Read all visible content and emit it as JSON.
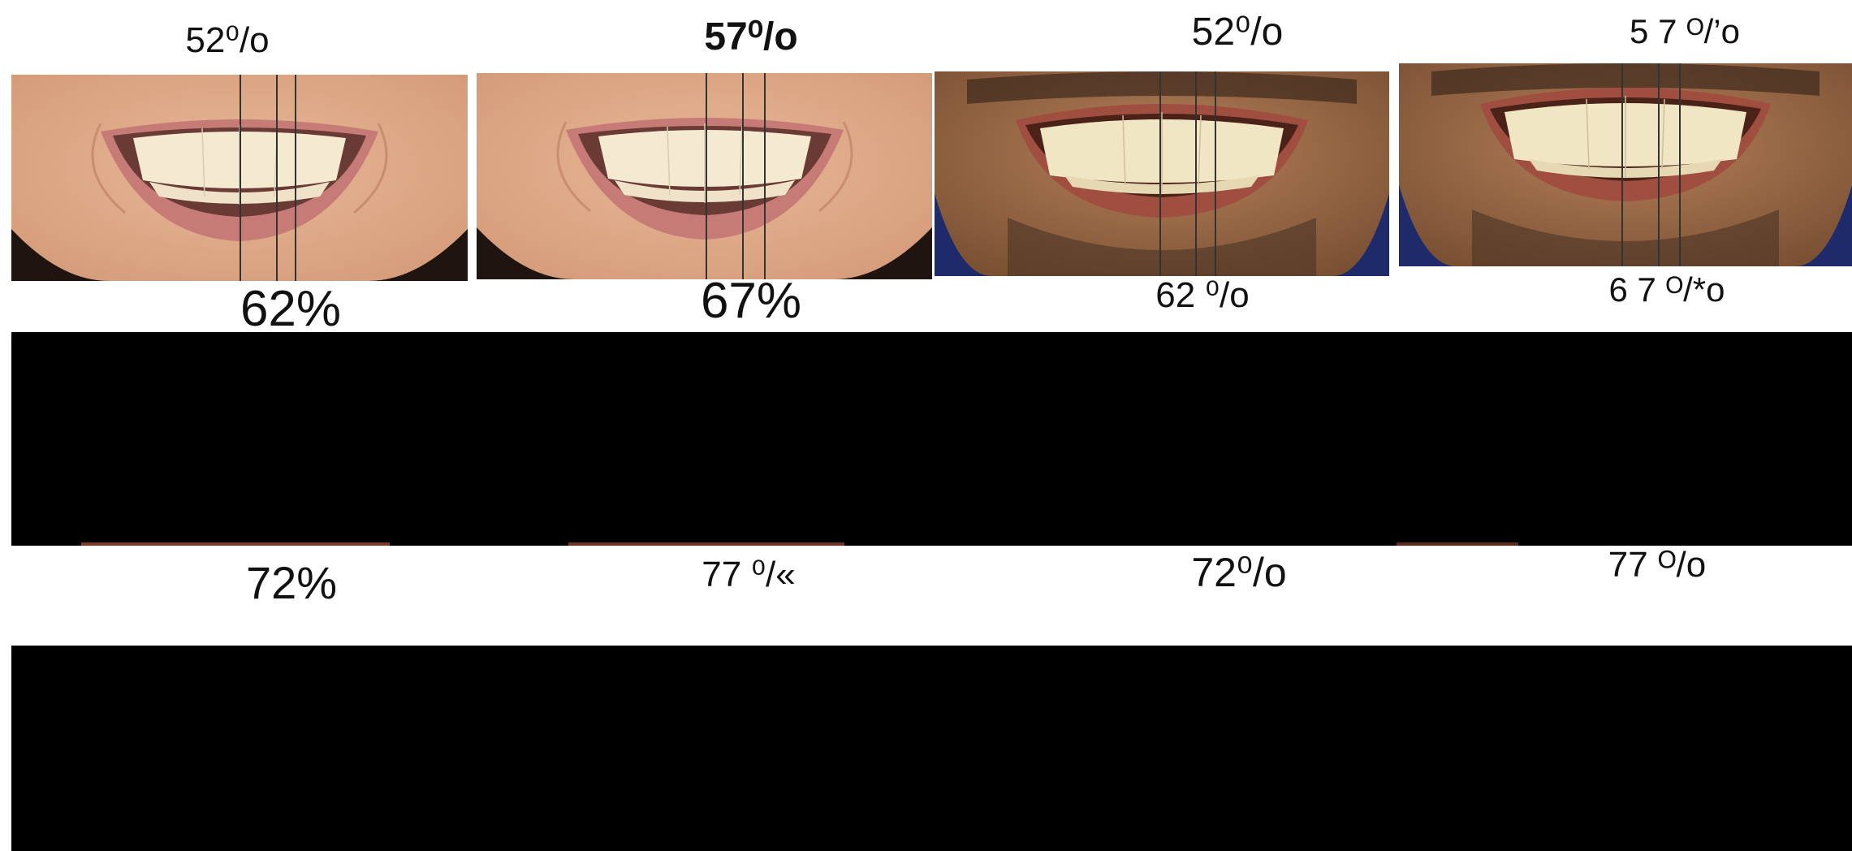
{
  "labels": {
    "row1": [
      "52⁰/o",
      "57⁰/o",
      "52⁰/o",
      "5 7 ᴼ/’o"
    ],
    "row2": [
      "62%",
      "67%",
      "62 ⁰/o",
      "6 7 ᴼ/*o"
    ],
    "row3": [
      "72%",
      "77 ⁰/«",
      "72⁰/o",
      "77 ᴼ/o"
    ]
  },
  "photos": [
    {
      "name": "smile-female-52",
      "subject": "female"
    },
    {
      "name": "smile-female-57",
      "subject": "female"
    },
    {
      "name": "smile-male-52",
      "subject": "male"
    },
    {
      "name": "smile-male-57",
      "subject": "male"
    }
  ],
  "colors": {
    "skin_female": "#e4ae8c",
    "skin_male": "#a8734f",
    "lip": "#c77b76",
    "teeth": "#f4ead2",
    "block": "#000000"
  }
}
